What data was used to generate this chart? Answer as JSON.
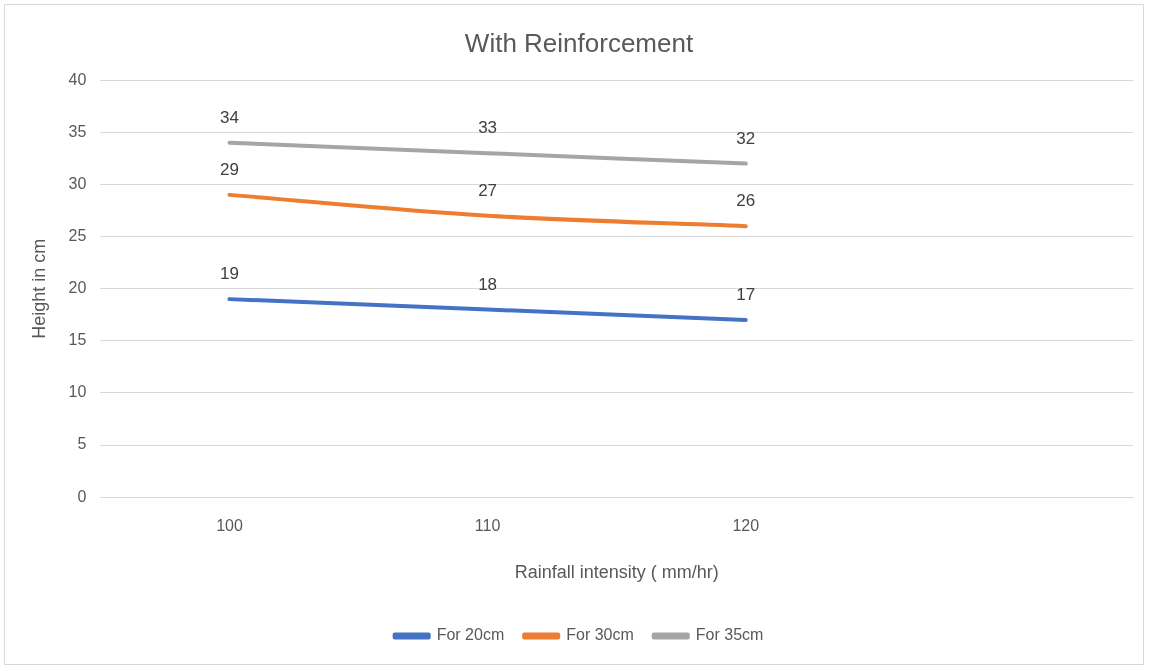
{
  "chart_data": {
    "type": "line",
    "title": "With Reinforcement",
    "xlabel": "Rainfall intensity ( mm/hr)",
    "ylabel": "Height in cm",
    "categories": [
      "100",
      "110",
      "120",
      null
    ],
    "series": [
      {
        "name": "For 20cm",
        "color": "#4472c4",
        "values": [
          19,
          18,
          17,
          null
        ]
      },
      {
        "name": "For 30cm",
        "color": "#ed7d31",
        "values": [
          29,
          27,
          26,
          null
        ]
      },
      {
        "name": "For 35cm",
        "color": "#a5a5a5",
        "values": [
          34,
          33,
          32,
          null
        ]
      }
    ],
    "ylim": [
      0,
      40
    ],
    "yticks": [
      0,
      5,
      10,
      15,
      20,
      25,
      30,
      35,
      40
    ],
    "grid": "y",
    "legend": "bottom",
    "marker": "none",
    "line_style": "solid",
    "data_labels": true
  }
}
